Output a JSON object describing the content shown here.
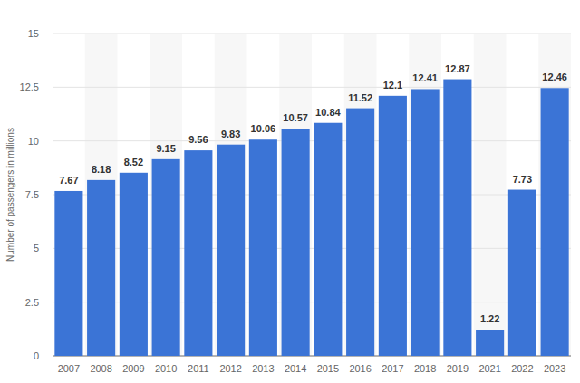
{
  "chart_data": {
    "type": "bar",
    "y_label": "Number of passengers in millions",
    "categories": [
      "2007",
      "2008",
      "2009",
      "2010",
      "2011",
      "2012",
      "2013",
      "2014",
      "2015",
      "2016",
      "2017",
      "2018",
      "2019",
      "2021",
      "2022",
      "2023"
    ],
    "values": [
      7.67,
      8.18,
      8.52,
      9.15,
      9.56,
      9.83,
      10.06,
      10.57,
      10.84,
      11.52,
      12.1,
      12.41,
      12.87,
      1.22,
      7.73,
      12.46
    ],
    "color": "#3b74d6",
    "ylim": [
      0,
      15
    ],
    "yticks": [
      0,
      2.5,
      5,
      7.5,
      10,
      12.5,
      15
    ],
    "grid": true,
    "data_labels": true
  }
}
